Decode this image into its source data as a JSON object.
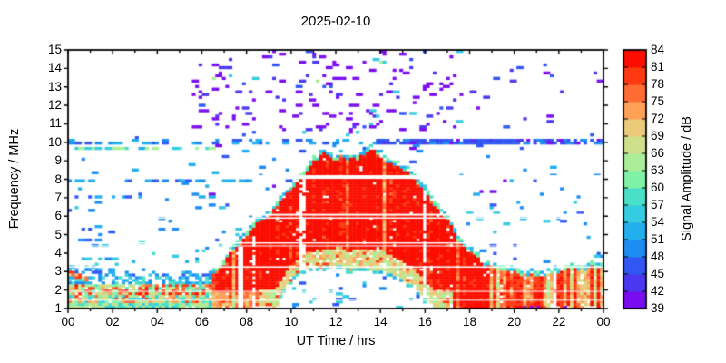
{
  "title": "2025-02-10",
  "chart_data": {
    "type": "heatmap",
    "title": "2025-02-10",
    "xlabel": "UT Time / hrs",
    "ylabel": "Frequency / MHz",
    "xlim": [
      0,
      24
    ],
    "ylim": [
      1,
      15
    ],
    "grid": false,
    "x_tick_hours": [
      0,
      2,
      4,
      6,
      8,
      10,
      12,
      14,
      16,
      18,
      20,
      22,
      24
    ],
    "x_tick_labels": [
      "00",
      "02",
      "04",
      "06",
      "08",
      "10",
      "12",
      "14",
      "16",
      "18",
      "20",
      "22",
      "00"
    ],
    "y_tick_values": [
      1,
      2,
      3,
      4,
      5,
      6,
      7,
      8,
      9,
      10,
      11,
      12,
      13,
      14,
      15
    ],
    "colorbar": {
      "label": "Signal Amplitude / dB",
      "min": 39,
      "max": 84,
      "step": 3,
      "tick_values": [
        39,
        42,
        45,
        48,
        51,
        54,
        57,
        60,
        63,
        66,
        69,
        72,
        75,
        78,
        81,
        84
      ],
      "segment_colors": [
        "#7A0CF0",
        "#4A38F0",
        "#3157F2",
        "#1C8DF2",
        "#23AEEE",
        "#35CBE0",
        "#4ADFC9",
        "#7FF2A8",
        "#AAEE9A",
        "#CFE08A",
        "#EBCB79",
        "#FFA057",
        "#FF6B35",
        "#FF3A12",
        "#FB0E00"
      ]
    },
    "spectrogram": {
      "seed": 1234,
      "upper_envelope": [
        [
          0,
          3.4
        ],
        [
          1,
          3.25
        ],
        [
          2,
          3.1
        ],
        [
          3,
          3.0
        ],
        [
          4,
          2.95
        ],
        [
          5,
          2.9
        ],
        [
          6,
          3.0
        ],
        [
          6.5,
          3.3
        ],
        [
          7,
          3.7
        ],
        [
          7.3,
          4.3
        ],
        [
          7.6,
          4.8
        ],
        [
          8,
          5.3
        ],
        [
          8.4,
          5.8
        ],
        [
          8.8,
          6.3
        ],
        [
          9.2,
          6.7
        ],
        [
          9.6,
          7.1
        ],
        [
          10,
          7.7
        ],
        [
          10.4,
          8.1
        ],
        [
          10.8,
          8.6
        ],
        [
          11.1,
          9.2
        ],
        [
          11.4,
          9.55
        ],
        [
          11.7,
          9.5
        ],
        [
          12,
          9.3
        ],
        [
          12.3,
          9.45
        ],
        [
          12.7,
          9.3
        ],
        [
          13,
          9.35
        ],
        [
          13.3,
          9.6
        ],
        [
          13.6,
          9.95
        ],
        [
          13.9,
          9.7
        ],
        [
          14.2,
          9.35
        ],
        [
          14.6,
          9.05
        ],
        [
          15,
          8.85
        ],
        [
          15.4,
          8.45
        ],
        [
          15.8,
          7.95
        ],
        [
          16.2,
          7.35
        ],
        [
          16.6,
          6.5
        ],
        [
          17,
          5.85
        ],
        [
          17.4,
          5.15
        ],
        [
          17.8,
          4.55
        ],
        [
          18.2,
          4.15
        ],
        [
          18.6,
          3.75
        ],
        [
          19,
          3.45
        ],
        [
          19.5,
          3.25
        ],
        [
          20,
          3.15
        ],
        [
          21,
          3.2
        ],
        [
          22,
          3.3
        ],
        [
          23,
          3.35
        ],
        [
          24,
          3.4
        ]
      ],
      "lower_envelope": [
        [
          0,
          1
        ],
        [
          9.3,
          1
        ],
        [
          9.7,
          1.9
        ],
        [
          10,
          2.5
        ],
        [
          10.5,
          2.95
        ],
        [
          11,
          3.05
        ],
        [
          12,
          3.1
        ],
        [
          13,
          3.05
        ],
        [
          14,
          2.95
        ],
        [
          14.5,
          2.75
        ],
        [
          15,
          2.45
        ],
        [
          15.5,
          1.95
        ],
        [
          16,
          1.35
        ],
        [
          16.3,
          1
        ],
        [
          24,
          1
        ]
      ],
      "intensity_envelope": [
        [
          0,
          0.5
        ],
        [
          6.3,
          0.52
        ],
        [
          7,
          0.95
        ],
        [
          18.5,
          0.95
        ],
        [
          20.5,
          0.8
        ],
        [
          24,
          0.62
        ]
      ],
      "absorption_gap_hours": [
        9.3,
        16.3
      ],
      "night_hours": 6.45,
      "evening_hours": 19.0,
      "skirt": {
        "frac": 0.18,
        "t": [
          8.5,
          17.2
        ]
      },
      "white_lines": [
        {
          "f": 8.12,
          "px": 4
        },
        {
          "f": 6.08,
          "px": 2
        },
        {
          "f": 5.9,
          "px": 1.5
        },
        {
          "f": 4.55,
          "px": 1.5
        },
        {
          "f": 4.39,
          "px": 1
        },
        {
          "f": 3.25,
          "px": 1.5
        },
        {
          "f": 1.93,
          "px": 1
        },
        {
          "f": 1.45,
          "px": 1
        }
      ],
      "vertical_gap": {
        "t": [
          7.62,
          7.85
        ],
        "f_max": 4.35
      },
      "morning_streak": {
        "t": [
          0,
          0.85
        ],
        "f_start": 2.95,
        "slope": -0.4,
        "palette": [
          12,
          13,
          13,
          11
        ]
      },
      "speckle_regions": [
        {
          "name": "green-line-9.7MHz",
          "t": [
            0,
            7.2
          ],
          "f": [
            9.6,
            9.8
          ],
          "density": 0.5,
          "palette": [
            5,
            6,
            8,
            4
          ]
        },
        {
          "name": "blue-line-10MHz-dense",
          "t": [
            14,
            24
          ],
          "f": [
            9.95,
            10.16
          ],
          "density": 0.8,
          "palette": [
            2,
            1,
            0,
            2,
            3
          ]
        },
        {
          "name": "blue-line-10MHz",
          "t": [
            0,
            14
          ],
          "f": [
            9.95,
            10.16
          ],
          "density": 0.3,
          "palette": [
            2,
            3,
            4
          ]
        },
        {
          "name": "blue-line-7.9MHz",
          "t": [
            0,
            8.2
          ],
          "f": [
            7.82,
            8.0
          ],
          "density": 0.3,
          "palette": [
            2,
            3,
            4
          ]
        },
        {
          "name": "blue-line-7.1MHz",
          "t": [
            0,
            7
          ],
          "f": [
            7.0,
            7.16
          ],
          "density": 0.18,
          "palette": [
            2,
            4
          ]
        },
        {
          "name": "purple-speckle-field",
          "t": [
            5.6,
            17.7
          ],
          "f": [
            10.4,
            15.0
          ],
          "density": 0.07,
          "palette": [
            0,
            0,
            0,
            0,
            0,
            0,
            1,
            1,
            2,
            5,
            8
          ]
        },
        {
          "name": "upper-right-sparse",
          "t": [
            17.7,
            24
          ],
          "f": [
            10.4,
            15.0
          ],
          "density": 0.012,
          "palette": [
            0,
            1,
            2
          ]
        },
        {
          "name": "left-low-speckle",
          "t": [
            0,
            6.6
          ],
          "f": [
            3.3,
            4.6
          ],
          "density": 0.06,
          "palette": [
            3,
            4,
            5,
            6
          ]
        },
        {
          "name": "midday-gap-speckle",
          "t": [
            9.4,
            16.4
          ],
          "f": [
            1.0,
            2.95
          ],
          "density": 0.04,
          "palette": [
            2,
            3,
            5
          ]
        },
        {
          "name": "mid-sparse-upper",
          "t": [
            0,
            24
          ],
          "f": [
            6.8,
            10.35
          ],
          "density": 0.018,
          "palette": [
            2,
            3,
            3,
            4,
            0
          ]
        },
        {
          "name": "mid-sparse-lower",
          "t": [
            0,
            24
          ],
          "f": [
            3.3,
            6.8
          ],
          "density": 0.035,
          "palette": [
            2,
            3,
            3,
            2,
            4,
            5
          ]
        }
      ]
    }
  }
}
